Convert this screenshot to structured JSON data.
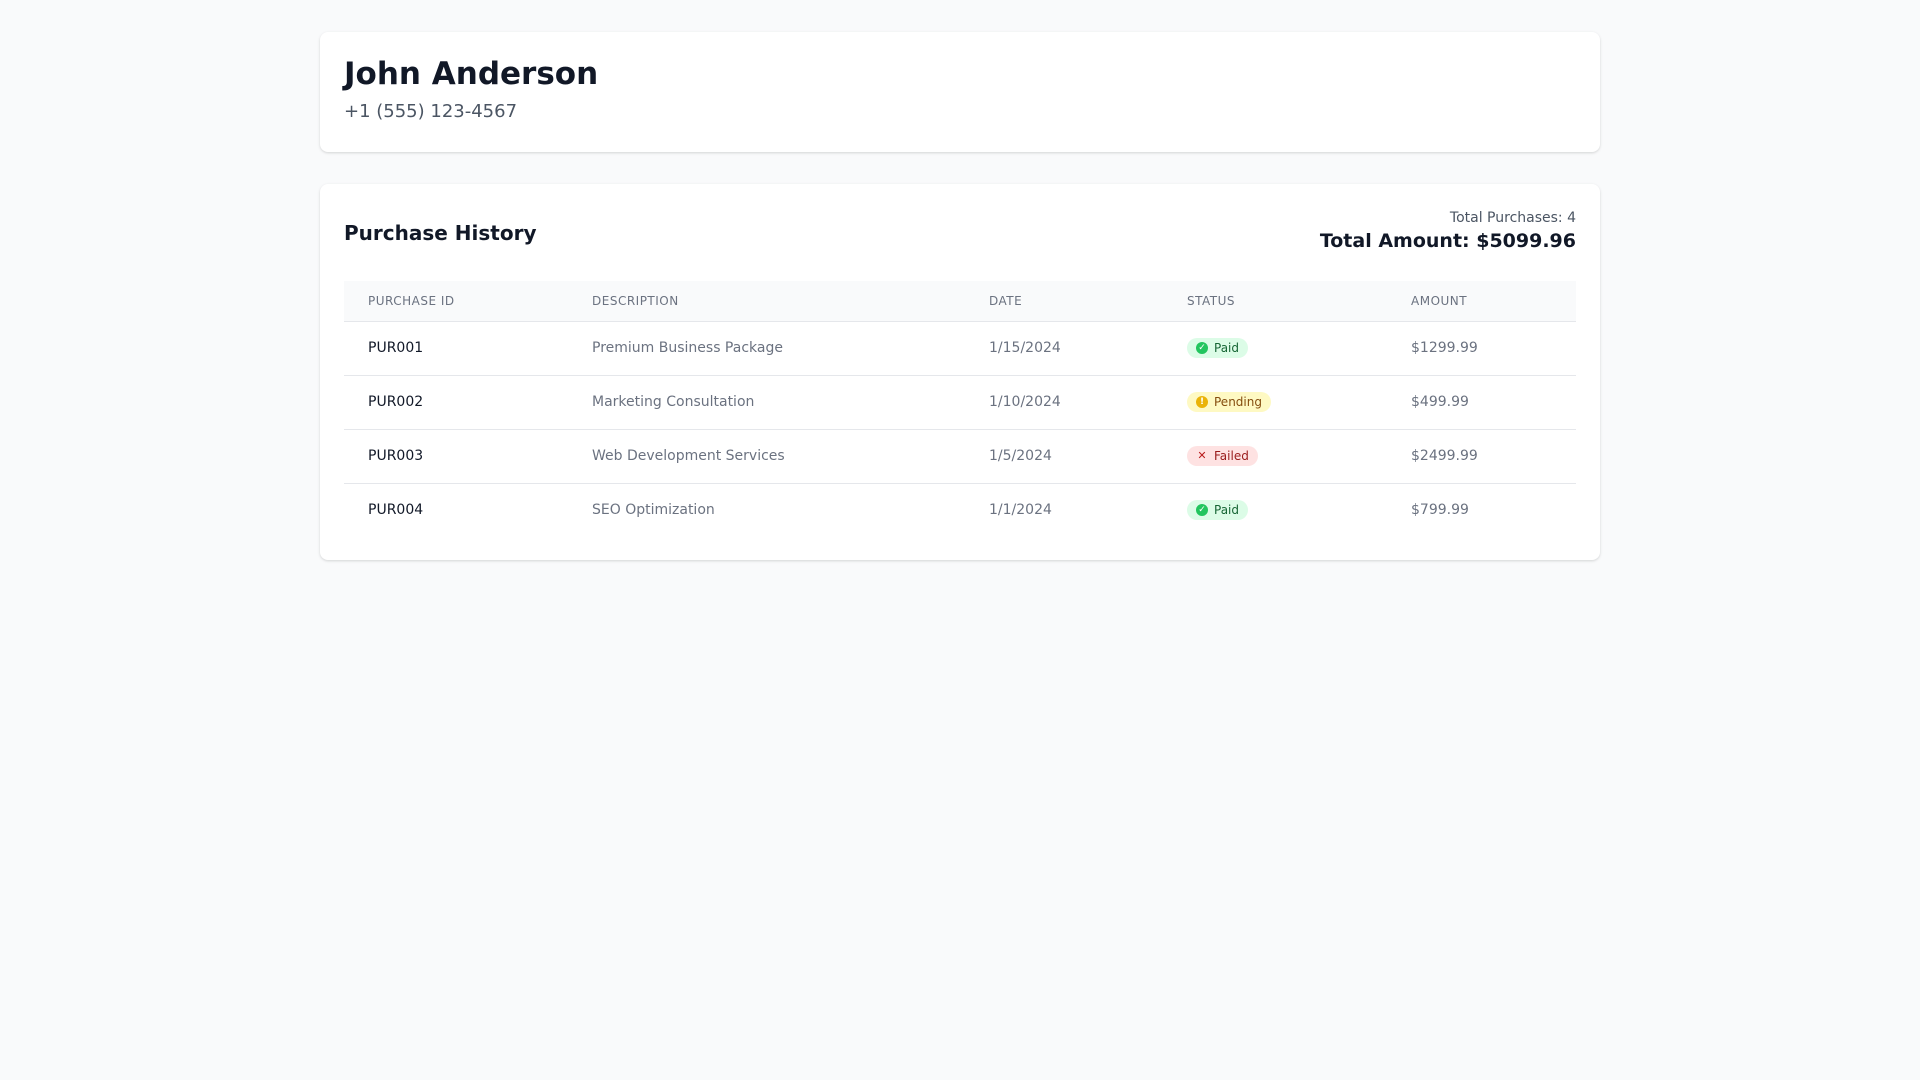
{
  "customer": {
    "name": "John Anderson",
    "phone": "+1 (555) 123-4567"
  },
  "history": {
    "title": "Purchase History",
    "total_purchases": "Total Purchases: 4",
    "total_amount": "Total Amount: $5099.96",
    "columns": [
      "Purchase ID",
      "Description",
      "Date",
      "Status",
      "Amount"
    ],
    "rows": [
      {
        "id": "PUR001",
        "description": "Premium Business Package",
        "date": "1/15/2024",
        "status": "Paid",
        "status_kind": "paid",
        "status_icon": "check-circle-icon",
        "amount": "$1299.99"
      },
      {
        "id": "PUR002",
        "description": "Marketing Consultation",
        "date": "1/10/2024",
        "status": "Pending",
        "status_kind": "pending",
        "status_icon": "clock-icon",
        "amount": "$499.99"
      },
      {
        "id": "PUR003",
        "description": "Web Development Services",
        "date": "1/5/2024",
        "status": "Failed",
        "status_kind": "failed",
        "status_icon": "x-icon",
        "amount": "$2499.99"
      },
      {
        "id": "PUR004",
        "description": "SEO Optimization",
        "date": "1/1/2024",
        "status": "Paid",
        "status_kind": "paid",
        "status_icon": "check-circle-icon",
        "amount": "$799.99"
      }
    ]
  },
  "colors": {
    "paid": "#22c55e",
    "pending": "#eab308",
    "failed": "#b91c1c"
  }
}
